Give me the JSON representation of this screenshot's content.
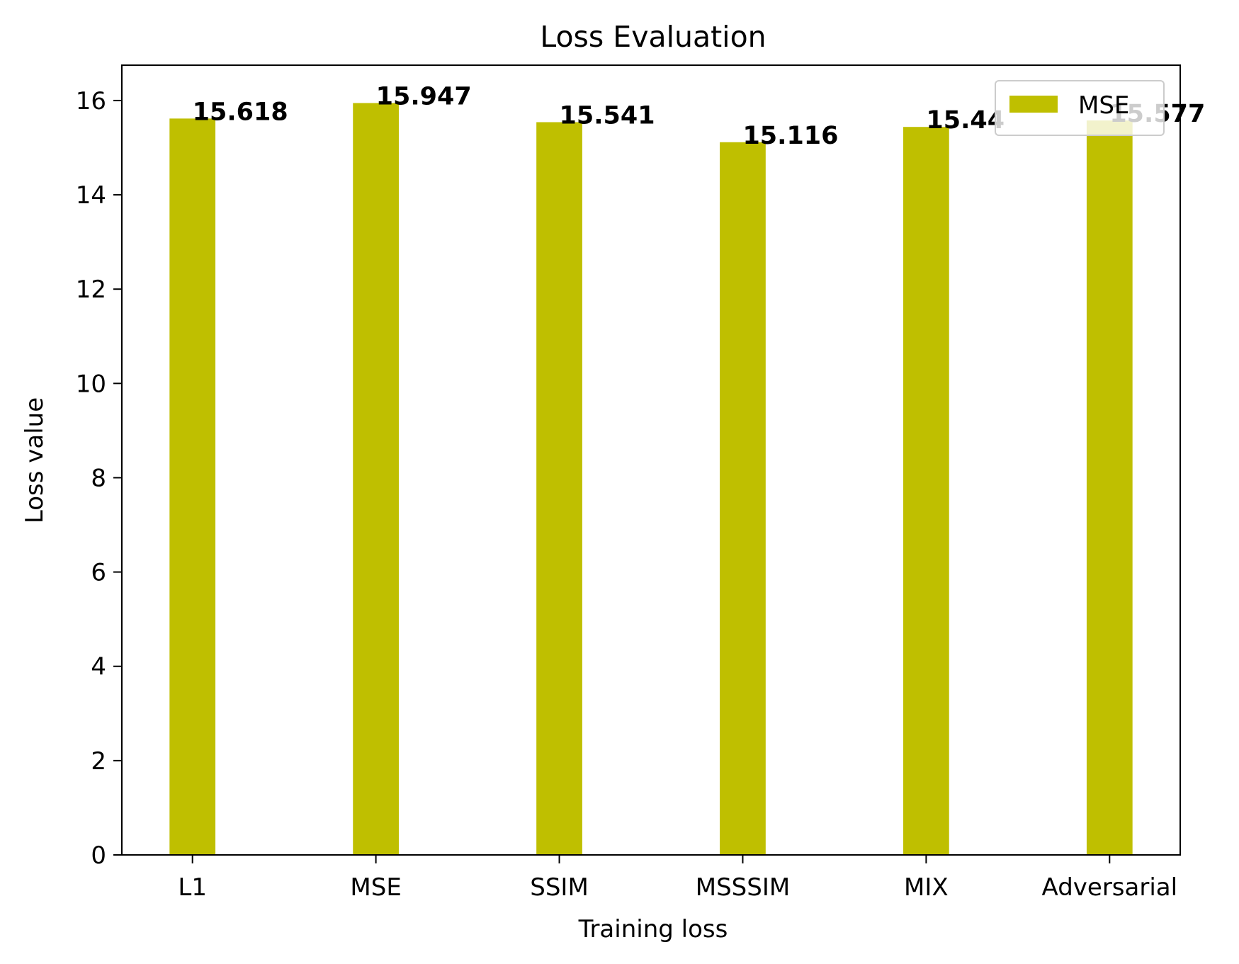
{
  "chart_data": {
    "type": "bar",
    "title": "Loss Evaluation",
    "xlabel": "Training loss",
    "ylabel": "Loss value",
    "categories": [
      "L1",
      "MSE",
      "SSIM",
      "MSSSIM",
      "MIX",
      "Adversarial"
    ],
    "series": [
      {
        "name": "MSE",
        "values": [
          15.618,
          15.947,
          15.541,
          15.116,
          15.44,
          15.577
        ],
        "value_labels": [
          "15.618",
          "15.947",
          "15.541",
          "15.116",
          "15.44",
          "15.577"
        ],
        "color": "#bfbf00"
      }
    ],
    "ylim": [
      0,
      16.75
    ],
    "yticks": [
      0,
      2,
      4,
      6,
      8,
      10,
      12,
      14,
      16
    ],
    "grid": false,
    "legend": "upper-right"
  }
}
